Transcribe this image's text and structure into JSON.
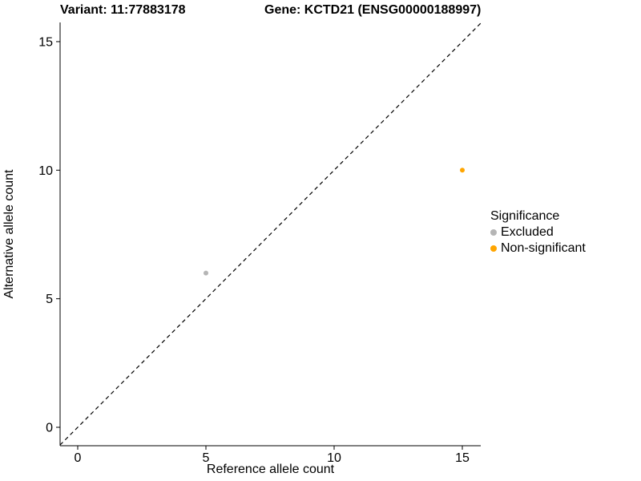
{
  "header": {
    "variant_title": "Variant: 11:77883178",
    "gene_title": "Gene: KCTD21 (ENSG00000188997)"
  },
  "chart_data": {
    "type": "scatter",
    "title_left": "Variant: 11:77883178",
    "title_right": "Gene: KCTD21 (ENSG00000188997)",
    "xlabel": "Reference allele count",
    "ylabel": "Alternative allele count",
    "xlim": [
      -0.69,
      15.72
    ],
    "ylim": [
      -0.69,
      15.72
    ],
    "xticks": [
      0,
      5,
      10,
      15
    ],
    "yticks": [
      0,
      5,
      10,
      15
    ],
    "grid": false,
    "identity_line": {
      "slope": 1,
      "intercept": 0,
      "style": "dashed",
      "color": "#000000"
    },
    "series": [
      {
        "name": "Excluded",
        "color": "#b5b5b5",
        "points": [
          [
            5,
            6
          ]
        ]
      },
      {
        "name": "Non-significant",
        "color": "#ffa500",
        "points": [
          [
            15,
            10
          ]
        ]
      }
    ],
    "legend": {
      "title": "Significance",
      "position": "right"
    }
  }
}
